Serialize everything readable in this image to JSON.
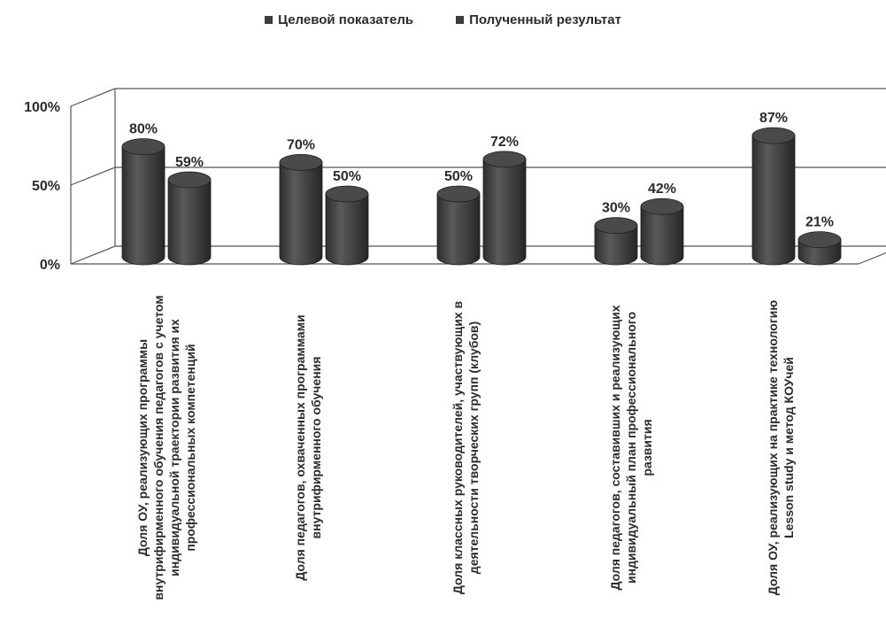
{
  "chart_data": {
    "type": "bar",
    "categories": [
      "Доля ОУ, реализующих программы внутрифирменного обучения педагогов с учетом  индивидуальной траектории развития их профессиональных компетенций",
      "Доля педагогов, охваченных программами внутрифирменного обучения",
      "Доля классных руководителей, участвующих в деятельности творческих групп (клубов)",
      "Доля педагогов, составивших и реализующих индивидуальный план профессионального развития",
      "Доля ОУ, реализующих на практике технологию Lesson study и метод  КОУчей"
    ],
    "series": [
      {
        "name": "Целевой показатель",
        "values": [
          80,
          70,
          50,
          30,
          87
        ]
      },
      {
        "name": "Полученный результат",
        "values": [
          59,
          50,
          72,
          42,
          21
        ]
      }
    ],
    "data_labels": [
      [
        "80%",
        "70%",
        "50%",
        "30%",
        "87%"
      ],
      [
        "59%",
        "50%",
        "72%",
        "42%",
        "21%"
      ]
    ],
    "yticks": [
      "0%",
      "50%",
      "100%"
    ],
    "ylim": [
      0,
      100
    ],
    "legend_position": "top",
    "grid": true,
    "colors": {
      "series": [
        "#3c3c3c",
        "#3c3c3c"
      ],
      "grid": "#555555",
      "text": "#2b2b2b"
    }
  }
}
